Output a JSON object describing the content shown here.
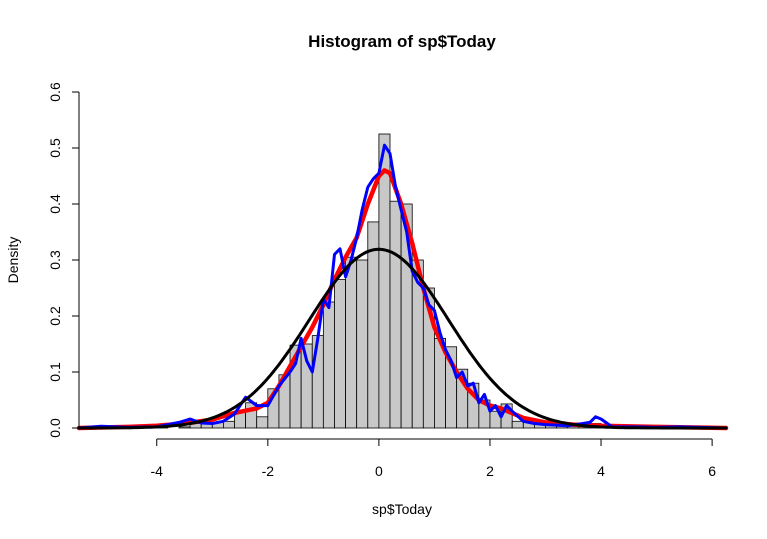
{
  "chart_data": {
    "type": "bar",
    "title": "Histogram of sp$Today",
    "xlabel": "sp$Today",
    "ylabel": "Density",
    "xlim": [
      -5.4,
      6.25
    ],
    "ylim": [
      0,
      0.6
    ],
    "x_ticks": [
      -4,
      -2,
      0,
      2,
      4,
      6
    ],
    "y_ticks": [
      0.0,
      0.1,
      0.2,
      0.3,
      0.4,
      0.5,
      0.6
    ],
    "x_tick_labels": [
      "-4",
      "-2",
      "0",
      "2",
      "4",
      "6"
    ],
    "y_tick_labels": [
      "0.0",
      "0.1",
      "0.2",
      "0.3",
      "0.4",
      "0.5",
      "0.6"
    ],
    "grid": false,
    "bar_color": "#c8c8c8",
    "bin_width": 0.2,
    "bins": [
      {
        "x0": -5.2,
        "density": 0.002
      },
      {
        "x0": -5.0,
        "density": 0.0
      },
      {
        "x0": -4.8,
        "density": 0.0
      },
      {
        "x0": -4.6,
        "density": 0.0
      },
      {
        "x0": -4.4,
        "density": 0.0
      },
      {
        "x0": -4.2,
        "density": 0.002
      },
      {
        "x0": -4.0,
        "density": 0.002
      },
      {
        "x0": -3.8,
        "density": 0.0
      },
      {
        "x0": -3.6,
        "density": 0.002
      },
      {
        "x0": -3.4,
        "density": 0.008
      },
      {
        "x0": -3.2,
        "density": 0.01
      },
      {
        "x0": -3.0,
        "density": 0.01
      },
      {
        "x0": -2.8,
        "density": 0.012
      },
      {
        "x0": -2.6,
        "density": 0.03
      },
      {
        "x0": -2.4,
        "density": 0.045
      },
      {
        "x0": -2.2,
        "density": 0.02
      },
      {
        "x0": -2.0,
        "density": 0.07
      },
      {
        "x0": -1.8,
        "density": 0.095
      },
      {
        "x0": -1.6,
        "density": 0.148
      },
      {
        "x0": -1.4,
        "density": 0.15
      },
      {
        "x0": -1.2,
        "density": 0.165
      },
      {
        "x0": -1.0,
        "density": 0.225
      },
      {
        "x0": -0.8,
        "density": 0.265
      },
      {
        "x0": -0.6,
        "density": 0.305
      },
      {
        "x0": -0.4,
        "density": 0.3
      },
      {
        "x0": -0.2,
        "density": 0.368
      },
      {
        "x0": 0.0,
        "density": 0.525
      },
      {
        "x0": 0.2,
        "density": 0.405
      },
      {
        "x0": 0.4,
        "density": 0.4
      },
      {
        "x0": 0.6,
        "density": 0.3
      },
      {
        "x0": 0.8,
        "density": 0.25
      },
      {
        "x0": 1.0,
        "density": 0.16
      },
      {
        "x0": 1.2,
        "density": 0.145
      },
      {
        "x0": 1.4,
        "density": 0.105
      },
      {
        "x0": 1.6,
        "density": 0.08
      },
      {
        "x0": 1.8,
        "density": 0.05
      },
      {
        "x0": 2.0,
        "density": 0.03
      },
      {
        "x0": 2.2,
        "density": 0.043
      },
      {
        "x0": 2.4,
        "density": 0.012
      },
      {
        "x0": 2.6,
        "density": 0.01
      },
      {
        "x0": 2.8,
        "density": 0.008
      },
      {
        "x0": 3.0,
        "density": 0.006
      },
      {
        "x0": 3.2,
        "density": 0.005
      },
      {
        "x0": 3.4,
        "density": 0.004
      },
      {
        "x0": 3.6,
        "density": 0.003
      },
      {
        "x0": 3.8,
        "density": 0.008
      },
      {
        "x0": 4.0,
        "density": 0.004
      },
      {
        "x0": 4.2,
        "density": 0.002
      },
      {
        "x0": 4.4,
        "density": 0.0
      },
      {
        "x0": 4.6,
        "density": 0.002
      },
      {
        "x0": 4.8,
        "density": 0.0
      },
      {
        "x0": 5.0,
        "density": 0.0
      },
      {
        "x0": 5.2,
        "density": 0.0
      },
      {
        "x0": 5.4,
        "density": 0.002
      },
      {
        "x0": 5.6,
        "density": 0.0
      },
      {
        "x0": 5.8,
        "density": 0.002
      }
    ],
    "series": [
      {
        "type": "line",
        "color": "#ff0000",
        "x": [
          -5.4,
          -4.5,
          -4.0,
          -3.5,
          -3.0,
          -2.6,
          -2.2,
          -2.0,
          -1.8,
          -1.6,
          -1.4,
          -1.2,
          -1.0,
          -0.8,
          -0.6,
          -0.4,
          -0.2,
          0.0,
          0.1,
          0.2,
          0.4,
          0.6,
          0.8,
          1.0,
          1.2,
          1.4,
          1.6,
          1.8,
          2.0,
          2.2,
          2.6,
          3.0,
          3.5,
          4.0,
          5.0,
          6.25
        ],
        "y": [
          0.0,
          0.002,
          0.004,
          0.008,
          0.015,
          0.027,
          0.035,
          0.045,
          0.075,
          0.11,
          0.145,
          0.18,
          0.22,
          0.265,
          0.305,
          0.34,
          0.4,
          0.45,
          0.46,
          0.455,
          0.4,
          0.33,
          0.25,
          0.18,
          0.135,
          0.1,
          0.07,
          0.05,
          0.04,
          0.035,
          0.018,
          0.01,
          0.006,
          0.004,
          0.002,
          0.0
        ]
      },
      {
        "type": "line",
        "color": "#0000ff",
        "x": [
          -5.4,
          -5.0,
          -4.5,
          -4.0,
          -3.6,
          -3.4,
          -3.2,
          -3.0,
          -2.8,
          -2.6,
          -2.4,
          -2.2,
          -2.0,
          -1.8,
          -1.6,
          -1.5,
          -1.4,
          -1.3,
          -1.2,
          -1.1,
          -1.0,
          -0.9,
          -0.8,
          -0.7,
          -0.6,
          -0.5,
          -0.4,
          -0.3,
          -0.2,
          -0.1,
          0.0,
          0.1,
          0.2,
          0.3,
          0.4,
          0.5,
          0.6,
          0.7,
          0.8,
          0.9,
          1.0,
          1.1,
          1.2,
          1.3,
          1.4,
          1.5,
          1.6,
          1.7,
          1.8,
          1.9,
          2.0,
          2.1,
          2.2,
          2.3,
          2.4,
          2.6,
          2.8,
          3.0,
          3.4,
          3.8,
          3.9,
          4.0,
          4.2,
          4.6,
          5.0,
          5.4,
          6.25
        ],
        "y": [
          0.0,
          0.003,
          0.001,
          0.002,
          0.01,
          0.016,
          0.009,
          0.008,
          0.012,
          0.025,
          0.055,
          0.04,
          0.04,
          0.075,
          0.1,
          0.115,
          0.16,
          0.12,
          0.1,
          0.16,
          0.23,
          0.215,
          0.31,
          0.32,
          0.27,
          0.3,
          0.34,
          0.39,
          0.43,
          0.445,
          0.455,
          0.505,
          0.49,
          0.43,
          0.39,
          0.35,
          0.28,
          0.26,
          0.25,
          0.22,
          0.21,
          0.17,
          0.14,
          0.12,
          0.09,
          0.1,
          0.075,
          0.08,
          0.045,
          0.06,
          0.03,
          0.04,
          0.02,
          0.04,
          0.03,
          0.012,
          0.008,
          0.006,
          0.004,
          0.01,
          0.02,
          0.016,
          0.002,
          0.002,
          0.001,
          0.002,
          0.0
        ]
      },
      {
        "type": "line",
        "color": "#000000",
        "curve": "normal",
        "mean": 0.0,
        "sd": 1.25,
        "x_range": [
          -5.4,
          6.25
        ]
      }
    ]
  }
}
